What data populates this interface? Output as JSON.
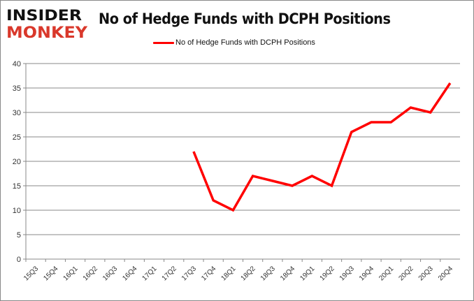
{
  "logo": {
    "line1": "INSIDER",
    "line2": "MONKEY",
    "colors": {
      "line1": "#111111",
      "line2": "#d9382b"
    }
  },
  "chart_data": {
    "type": "line",
    "title": "No of Hedge Funds with DCPH Positions",
    "xlabel": "",
    "ylabel": "",
    "categories": [
      "15Q3",
      "15Q4",
      "16Q1",
      "16Q2",
      "16Q3",
      "16Q4",
      "17Q1",
      "17Q2",
      "17Q3",
      "17Q4",
      "18Q1",
      "18Q2",
      "18Q3",
      "18Q4",
      "19Q1",
      "19Q2",
      "19Q3",
      "19Q4",
      "20Q1",
      "20Q2",
      "20Q3",
      "20Q4"
    ],
    "series": [
      {
        "name": "No of Hedge Funds with DCPH Positions",
        "color": "#ff0000",
        "values": [
          null,
          null,
          null,
          null,
          null,
          null,
          null,
          null,
          22,
          12,
          10,
          17,
          16,
          15,
          17,
          15,
          26,
          28,
          28,
          31,
          30,
          36
        ]
      }
    ],
    "ylim": [
      0,
      40
    ],
    "yticks": [
      0,
      5,
      10,
      15,
      20,
      25,
      30,
      35,
      40
    ],
    "grid": true,
    "legend": "top-center"
  }
}
